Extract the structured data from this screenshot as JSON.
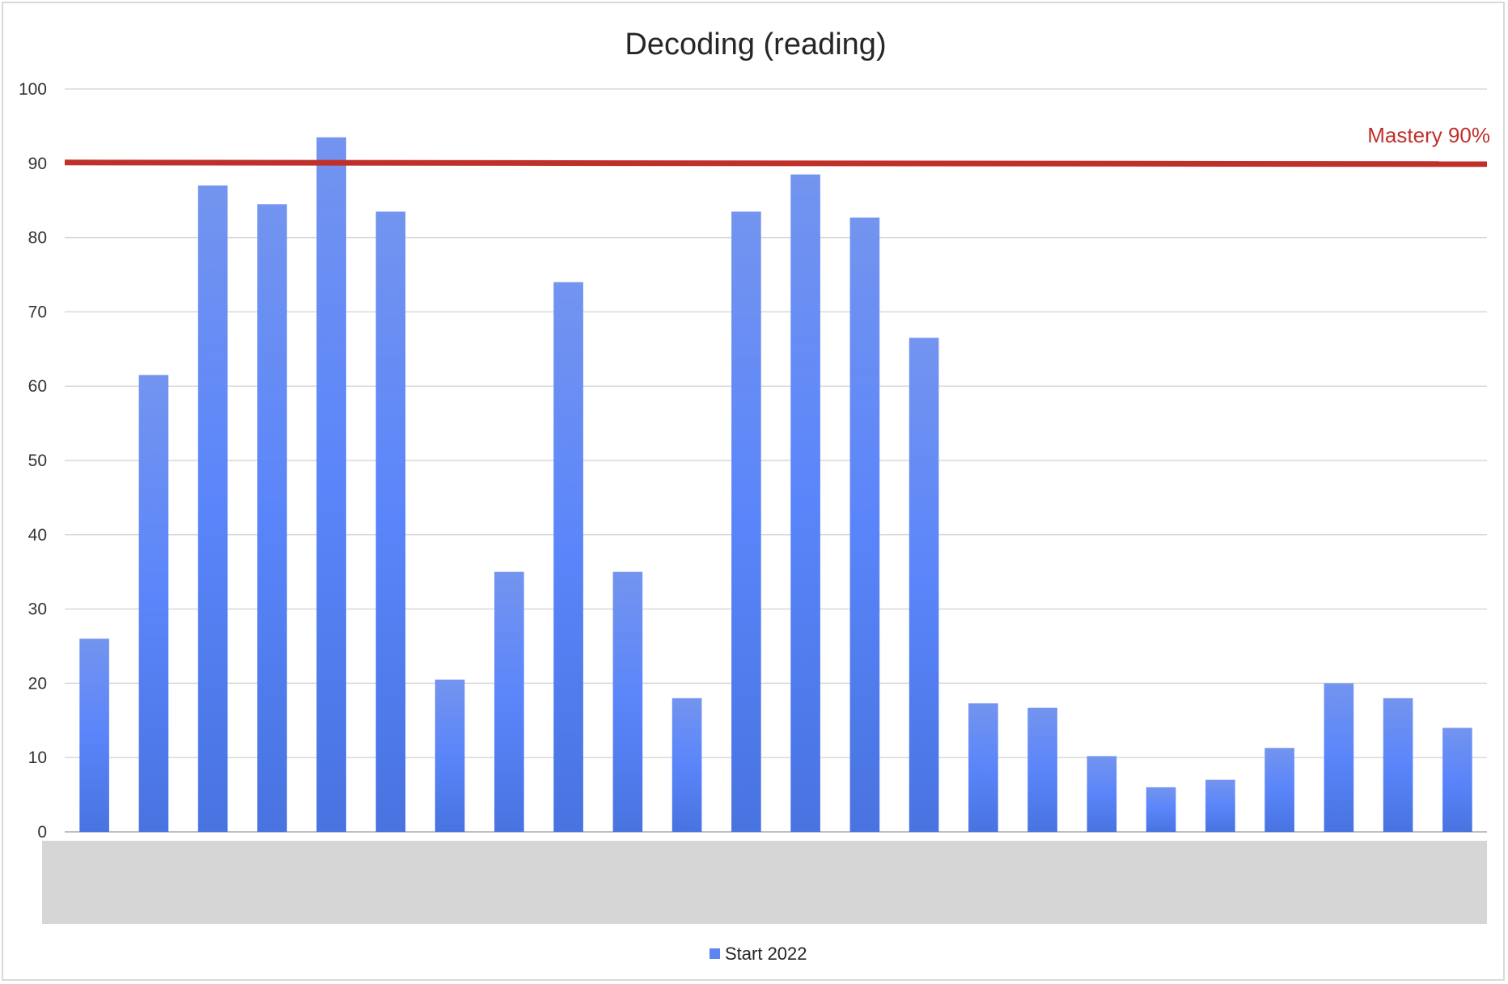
{
  "chart_data": {
    "type": "bar",
    "title": "Decoding (reading)",
    "xlabel": "",
    "ylabel": "",
    "ylim": [
      0,
      100
    ],
    "yticks": [
      0,
      10,
      20,
      30,
      40,
      50,
      60,
      70,
      80,
      90,
      100
    ],
    "grid": true,
    "legend_position": "bottom",
    "categories": [
      "",
      "",
      "",
      "",
      "",
      "",
      "",
      "",
      "",
      "",
      "",
      "",
      "",
      "",
      "",
      "",
      "",
      "",
      "",
      "",
      "",
      "",
      "",
      ""
    ],
    "series": [
      {
        "name": "Start 2022",
        "color": "#5b86f2",
        "values": [
          26,
          61.5,
          87,
          84.5,
          93.5,
          83.5,
          20.5,
          35,
          74,
          35,
          18,
          83.5,
          88.5,
          82.7,
          66.5,
          17.3,
          16.7,
          10.2,
          6,
          7,
          11.3,
          20,
          18,
          14
        ]
      }
    ],
    "reference_line": {
      "label": "Mastery 90%",
      "value": 90,
      "color": "#c0302b"
    },
    "category_band_color": "#d6d6d6"
  }
}
